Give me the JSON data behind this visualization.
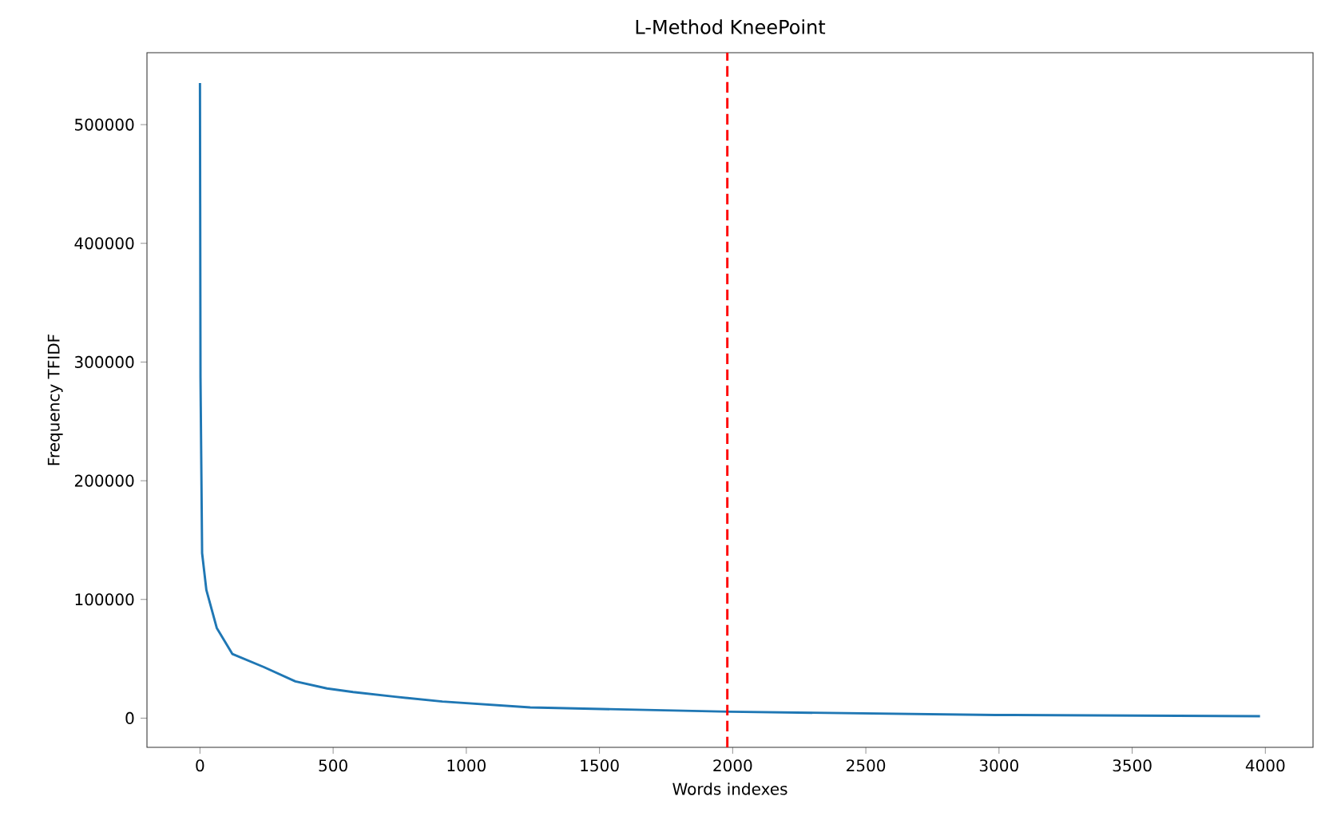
{
  "chart_data": {
    "type": "line",
    "title": "L-Method KneePoint",
    "xlabel": "Words indexes",
    "ylabel": "Frequency TFIDF",
    "x": [
      0,
      2,
      8,
      24,
      63,
      122,
      240,
      358,
      477,
      575,
      733,
      910,
      1240,
      1988,
      2985,
      3980
    ],
    "values": [
      535000,
      287000,
      139000,
      108000,
      76000,
      54000,
      43000,
      31000,
      25000,
      22000,
      18000,
      14000,
      9000,
      5400,
      2700,
      1600
    ],
    "color": "#1f77b4",
    "xlim": [
      -199,
      4179
    ],
    "ylim": [
      -24600,
      560600
    ],
    "xticks": [
      0,
      500,
      1000,
      1500,
      2000,
      2500,
      3000,
      3500,
      4000
    ],
    "yticks": [
      0,
      100000,
      200000,
      300000,
      400000,
      500000
    ],
    "ref_lines": [
      {
        "axis": "x",
        "value": 1980,
        "color": "#ff0000",
        "line_style": "dashed"
      }
    ]
  }
}
